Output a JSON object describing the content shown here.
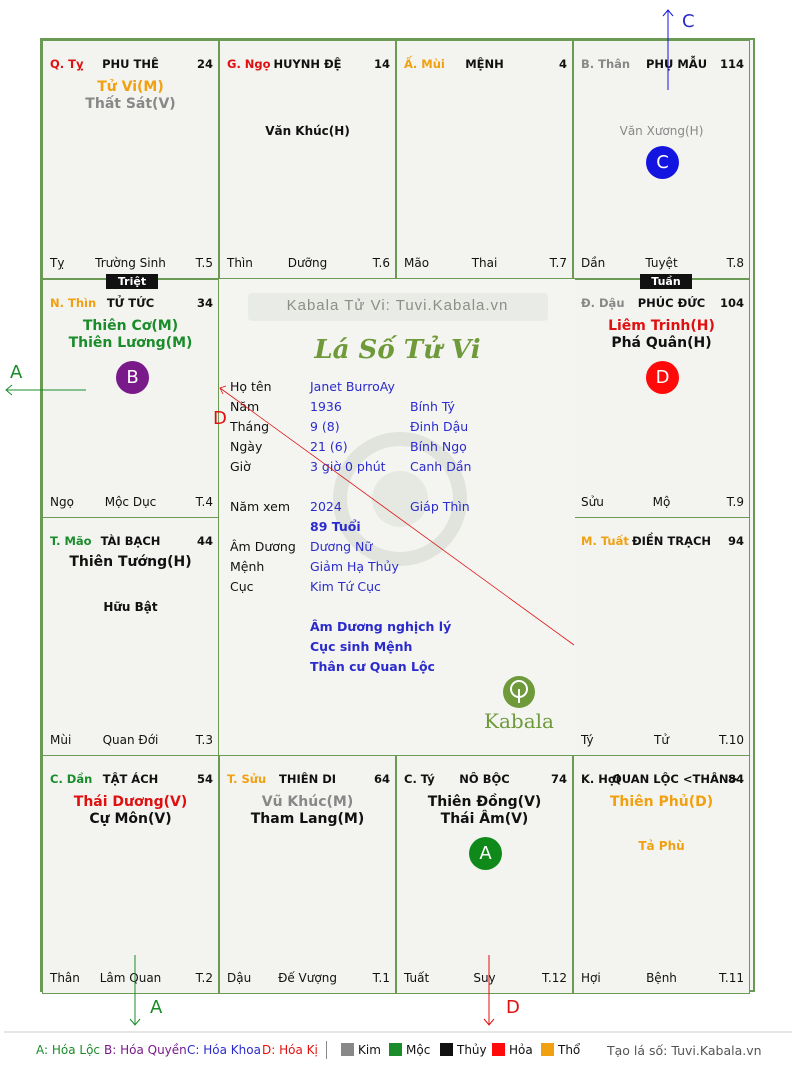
{
  "colors": {
    "green": "#1a8c2a",
    "red": "#e01010",
    "orange": "#f0a010",
    "gray": "#888888",
    "blue": "#2b2bcc",
    "purple": "#7a1a8a",
    "black": "#111111",
    "border": "#6b9a55"
  },
  "palaces": [
    {
      "tag": "Q. Tỵ",
      "name": "PHU THÊ",
      "num": "24",
      "stars": [
        "Tử Vi(M)",
        "Thất Sát(V)"
      ],
      "minor": "",
      "branch": "Tỵ",
      "stage": "Trường Sinh",
      "t": "T.5"
    },
    {
      "tag": "G. Ngọ",
      "name": "HUYNH ĐỆ",
      "num": "14",
      "stars": [],
      "minor": "Văn Khúc(H)",
      "branch": "Thìn",
      "stage": "Dưỡng",
      "t": "T.6"
    },
    {
      "tag": "Ấ. Mùi",
      "name": "MỆNH",
      "num": "4",
      "stars": [],
      "minor": "",
      "branch": "Mão",
      "stage": "Thai",
      "t": "T.7"
    },
    {
      "tag": "B. Thân",
      "name": "PHỤ MẪU",
      "num": "114",
      "stars": [],
      "minor": "Văn Xương(H)",
      "branch": "Dần",
      "stage": "Tuyệt",
      "t": "T.8"
    },
    {
      "tag": "N. Thìn",
      "name": "TỬ TỨC",
      "num": "34",
      "stars": [
        "Thiên Cơ(M)",
        "Thiên Lương(M)"
      ],
      "minor": "",
      "branch": "Ngọ",
      "stage": "Mộc Dục",
      "t": "T.4"
    },
    {
      "tag": "Đ. Dậu",
      "name": "PHÚC ĐỨC",
      "num": "104",
      "stars": [
        "Liêm Trinh(H)",
        "Phá Quân(H)"
      ],
      "minor": "",
      "branch": "Sửu",
      "stage": "Mộ",
      "t": "T.9"
    },
    {
      "tag": "T. Mão",
      "name": "TÀI BẠCH",
      "num": "44",
      "stars": [
        "Thiên Tướng(H)"
      ],
      "minor": "Hữu Bật",
      "branch": "Mùi",
      "stage": "Quan Đới",
      "t": "T.3"
    },
    {
      "tag": "M. Tuất",
      "name": "ĐIỀN TRẠCH",
      "num": "94",
      "stars": [],
      "minor": "",
      "branch": "Tý",
      "stage": "Tử",
      "t": "T.10"
    },
    {
      "tag": "C. Dần",
      "name": "TẬT ÁCH",
      "num": "54",
      "stars": [
        "Thái Dương(V)",
        "Cự Môn(V)"
      ],
      "minor": "",
      "branch": "Thân",
      "stage": "Lâm Quan",
      "t": "T.2"
    },
    {
      "tag": "T. Sửu",
      "name": "THIÊN DI",
      "num": "64",
      "stars": [
        "Vũ Khúc(M)",
        "Tham Lang(M)"
      ],
      "minor": "",
      "branch": "Dậu",
      "stage": "Đế Vượng",
      "t": "T.1"
    },
    {
      "tag": "C. Tý",
      "name": "NÔ BỘC",
      "num": "74",
      "stars": [
        "Thiên Đồng(V)",
        "Thái Âm(V)"
      ],
      "minor": "",
      "branch": "Tuất",
      "stage": "Suy",
      "t": "T.12"
    },
    {
      "tag": "K. Hợi",
      "name": "QUAN LỘC <THÂN>",
      "num": "84",
      "stars": [
        "Thiên Phủ(D)"
      ],
      "minor": "Tả Phù",
      "branch": "Hợi",
      "stage": "Bệnh",
      "t": "T.11"
    }
  ],
  "badges": {
    "triet": "Triệt",
    "tuan": "Tuần"
  },
  "circles": {
    "a": "A",
    "b": "B",
    "c": "C",
    "d": "D"
  },
  "center": {
    "site": "Kabala Tử Vi: Tuvi.Kabala.vn",
    "title": "Lá Số Tử Vi",
    "rows": [
      {
        "label": "Họ tên",
        "v1": "Janet BurroAy",
        "v2": ""
      },
      {
        "label": "Năm",
        "v1": "1936",
        "v2": "Bính Tý"
      },
      {
        "label": "Tháng",
        "v1": "9  (8)",
        "v2": "Đinh Dậu"
      },
      {
        "label": "Ngày",
        "v1": "21  (6)",
        "v2": "Bính Ngọ"
      },
      {
        "label": "Giờ",
        "v1": "3 giờ 0 phút",
        "v2": "Canh Dần"
      }
    ],
    "year_label": "Năm xem",
    "year": "2024",
    "year_can": "Giáp Thìn",
    "age": "89 Tuổi",
    "rows2": [
      {
        "label": "Âm Dương",
        "v1": "Dương Nữ"
      },
      {
        "label": "Mệnh",
        "v1": "Giảm Hạ Thủy"
      },
      {
        "label": "Cục",
        "v1": "Kim Tứ Cục"
      }
    ],
    "notes": [
      "Âm Dương nghịch lý",
      "Cục sinh Mệnh",
      "Thân cư Quan Lộc"
    ],
    "brand": "Kabala"
  },
  "arrows": {
    "a1": "A",
    "a2": "A",
    "c": "C",
    "d1": "D",
    "d2": "D"
  },
  "legend": {
    "a": "A: Hóa Lộc",
    "b": "B: Hóa Quyền",
    "c": "C: Hóa Khoa",
    "d": "D: Hóa Kị",
    "kim": "Kim",
    "moc": "Mộc",
    "thuy": "Thủy",
    "hoa": "Hỏa",
    "tho": "Thổ",
    "site": "Tạo lá số: Tuvi.Kabala.vn"
  }
}
